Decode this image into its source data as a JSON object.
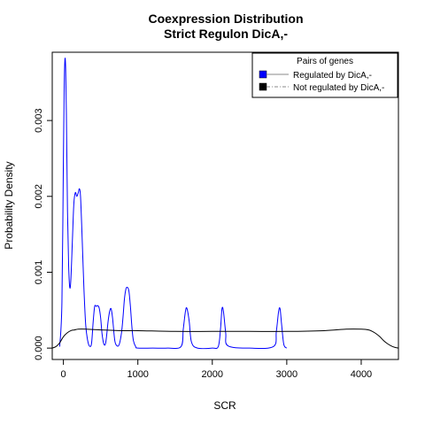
{
  "chart_data": {
    "type": "line",
    "title": "Coexpression Distribution",
    "subtitle": "Strict Regulon DicA,-",
    "xlabel": "SCR",
    "ylabel": "Probability Density",
    "xlim": [
      -150,
      4500
    ],
    "ylim": [
      -0.00015,
      0.0039
    ],
    "x_ticks": [
      0,
      1000,
      2000,
      3000,
      4000
    ],
    "x_tick_labels": [
      "0",
      "1000",
      "2000",
      "3000",
      "4000"
    ],
    "y_ticks": [
      0,
      0.001,
      0.002,
      0.003
    ],
    "y_tick_labels": [
      "0.000",
      "0.001",
      "0.002",
      "0.003"
    ],
    "legend": {
      "title": "Pairs of genes",
      "placement": "top-right",
      "entries": [
        {
          "label": "Regulated by  DicA,-",
          "color": "#0000ff"
        },
        {
          "label": "Not regulated by  DicA,-",
          "color": "#000000"
        }
      ]
    },
    "series": [
      {
        "name": "Regulated by  DicA,-",
        "color": "#0000ff",
        "x": [
          -50,
          -20,
          0,
          10,
          20,
          30,
          40,
          55,
          70,
          85,
          100,
          120,
          140,
          160,
          180,
          200,
          215,
          230,
          250,
          275,
          300,
          330,
          360,
          380,
          400,
          420,
          440,
          460,
          480,
          500,
          520,
          545,
          570,
          600,
          620,
          640,
          660,
          690,
          720,
          750,
          780,
          800,
          820,
          840,
          860,
          880,
          900,
          920,
          940,
          970,
          1000,
          1200,
          1400,
          1580,
          1610,
          1640,
          1660,
          1690,
          1720,
          1800,
          2000,
          2080,
          2110,
          2130,
          2150,
          2180,
          2210,
          2500,
          2820,
          2860,
          2890,
          2910,
          2930,
          2960,
          3000
        ],
        "y": [
          2e-05,
          0.0006,
          0.0025,
          0.0034,
          0.0038,
          0.0037,
          0.0031,
          0.0018,
          0.0011,
          0.0008,
          0.0009,
          0.0014,
          0.0019,
          0.00205,
          0.002,
          0.00205,
          0.0021,
          0.002,
          0.0015,
          0.0008,
          0.0003,
          8e-05,
          2e-05,
          8e-05,
          0.00035,
          0.00055,
          0.00055,
          0.00056,
          0.00053,
          0.0004,
          0.00018,
          5e-05,
          8e-05,
          0.00035,
          0.00048,
          0.00052,
          0.0004,
          0.0001,
          3e-05,
          5e-05,
          0.0002,
          0.0004,
          0.00065,
          0.00078,
          0.0008,
          0.00075,
          0.00055,
          0.00028,
          0.0001,
          2e-05,
          0.0,
          0.0,
          0.0,
          2e-05,
          0.00025,
          0.00049,
          0.00052,
          0.00035,
          8e-05,
          0.0,
          0.0,
          2e-05,
          0.00025,
          0.00052,
          0.00048,
          0.0002,
          3e-05,
          0.0,
          2e-05,
          0.00022,
          0.00048,
          0.00052,
          0.00032,
          5e-05,
          0.0
        ]
      },
      {
        "name": "Not regulated by  DicA,-",
        "color": "#000000",
        "x": [
          -150,
          -100,
          -50,
          0,
          50,
          100,
          150,
          200,
          300,
          500,
          800,
          1000,
          1500,
          2000,
          2500,
          3000,
          3500,
          3800,
          4000,
          4100,
          4150,
          4200,
          4250,
          4300,
          4350,
          4400,
          4450,
          4500
        ],
        "y": [
          0.0,
          2e-05,
          7e-05,
          0.00015,
          0.0002,
          0.00023,
          0.00024,
          0.00025,
          0.00025,
          0.00024,
          0.00023,
          0.00023,
          0.00022,
          0.00022,
          0.00022,
          0.00022,
          0.00023,
          0.00025,
          0.00025,
          0.00024,
          0.00022,
          0.00019,
          0.00015,
          0.0001,
          6e-05,
          3e-05,
          1e-05,
          0.0
        ]
      }
    ]
  }
}
